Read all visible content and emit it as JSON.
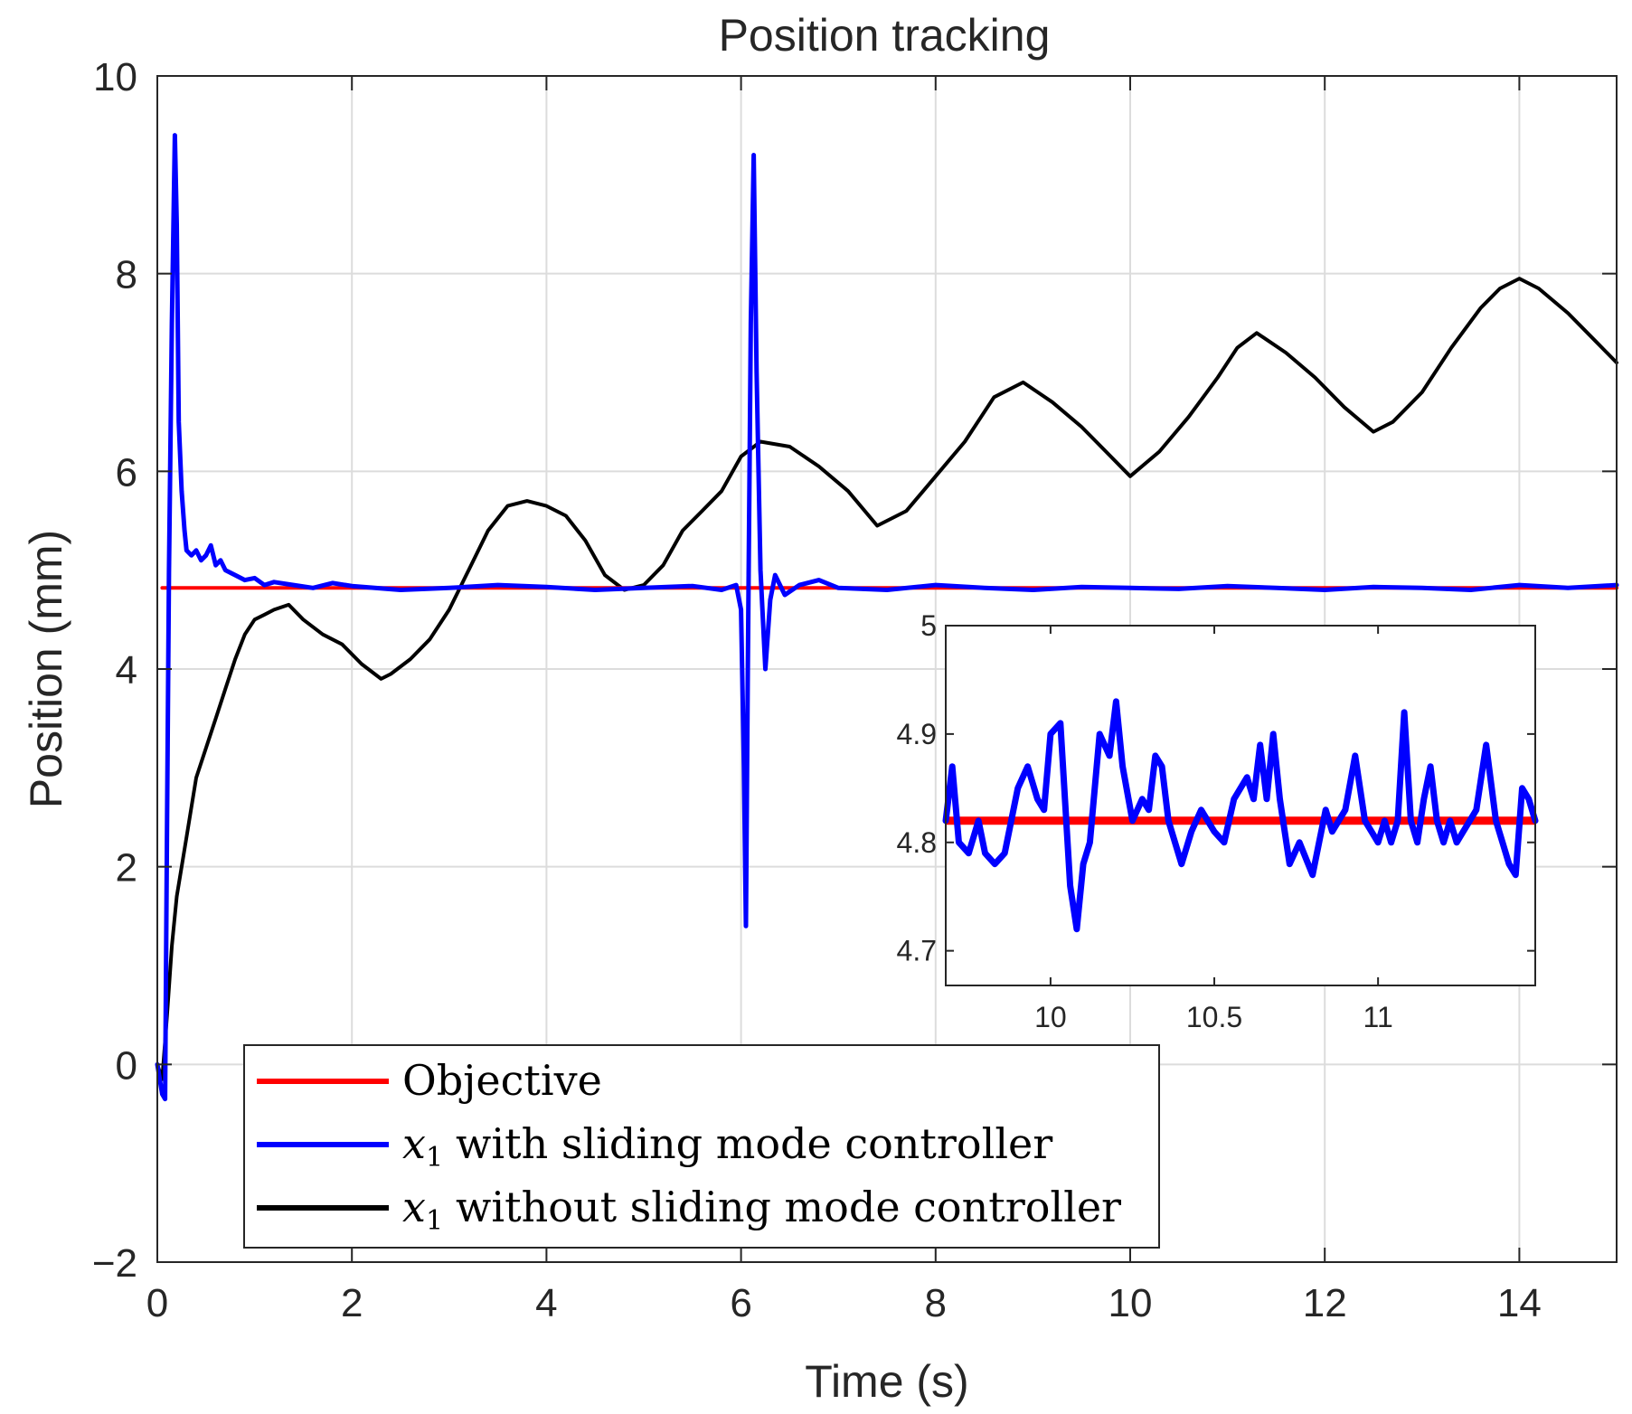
{
  "chart_data": {
    "type": "line",
    "title": "Position tracking",
    "xlabel": "Time (s)",
    "ylabel": "Position (mm)",
    "xlim": [
      0,
      15
    ],
    "ylim": [
      -2,
      10
    ],
    "grid": true,
    "xticks": [
      0,
      2,
      4,
      6,
      8,
      10,
      12,
      14
    ],
    "yticks": [
      -2,
      0,
      2,
      4,
      6,
      8,
      10
    ],
    "ytick_labels": [
      "−2",
      "0",
      "2",
      "4",
      "6",
      "8",
      "10"
    ],
    "legend_placement": "bottom-left",
    "series": [
      {
        "name": "Objective",
        "legend_label": "Objective",
        "color": "#ff0000",
        "x": [
          0.05,
          15
        ],
        "y": [
          4.82,
          4.82
        ]
      },
      {
        "name": "x1 with sliding mode controller",
        "legend_math": "x",
        "legend_sub": "1",
        "legend_text": "with sliding mode controller",
        "color": "#0000ff",
        "x": [
          0,
          0.05,
          0.08,
          0.1,
          0.12,
          0.15,
          0.18,
          0.2,
          0.22,
          0.25,
          0.28,
          0.3,
          0.35,
          0.4,
          0.45,
          0.5,
          0.55,
          0.6,
          0.65,
          0.7,
          0.8,
          0.9,
          1.0,
          1.1,
          1.2,
          1.4,
          1.6,
          1.8,
          2.0,
          2.5,
          3.0,
          3.5,
          4.0,
          4.5,
          5.0,
          5.5,
          5.8,
          5.95,
          6.0,
          6.03,
          6.05,
          6.07,
          6.1,
          6.13,
          6.16,
          6.2,
          6.25,
          6.3,
          6.35,
          6.45,
          6.6,
          6.8,
          7.0,
          7.5,
          8.0,
          8.5,
          9.0,
          9.5,
          10.0,
          10.5,
          11.0,
          11.5,
          12.0,
          12.5,
          13.0,
          13.5,
          14.0,
          14.5,
          15.0
        ],
        "y": [
          0,
          -0.3,
          -0.35,
          2.5,
          5.0,
          7.5,
          9.4,
          8.5,
          6.5,
          5.8,
          5.4,
          5.2,
          5.15,
          5.2,
          5.1,
          5.15,
          5.25,
          5.05,
          5.1,
          5.0,
          4.95,
          4.9,
          4.92,
          4.85,
          4.88,
          4.85,
          4.82,
          4.87,
          4.84,
          4.8,
          4.82,
          4.85,
          4.83,
          4.8,
          4.82,
          4.84,
          4.8,
          4.85,
          4.6,
          3.0,
          1.4,
          4.0,
          7.5,
          9.2,
          7.0,
          5.0,
          4.0,
          4.7,
          4.95,
          4.75,
          4.85,
          4.9,
          4.82,
          4.8,
          4.85,
          4.82,
          4.8,
          4.83,
          4.82,
          4.81,
          4.84,
          4.82,
          4.8,
          4.83,
          4.82,
          4.8,
          4.85,
          4.82,
          4.85
        ]
      },
      {
        "name": "x1 without sliding mode controller",
        "legend_math": "x",
        "legend_sub": "1",
        "legend_text": "without sliding mode controller",
        "color": "#000000",
        "x": [
          0,
          0.05,
          0.1,
          0.15,
          0.2,
          0.3,
          0.4,
          0.5,
          0.6,
          0.7,
          0.8,
          0.9,
          1.0,
          1.1,
          1.2,
          1.35,
          1.5,
          1.7,
          1.9,
          2.1,
          2.3,
          2.4,
          2.6,
          2.8,
          3.0,
          3.2,
          3.4,
          3.6,
          3.8,
          4.0,
          4.2,
          4.4,
          4.6,
          4.8,
          5.0,
          5.2,
          5.4,
          5.6,
          5.8,
          6.0,
          6.2,
          6.5,
          6.8,
          7.1,
          7.4,
          7.7,
          8.0,
          8.3,
          8.6,
          8.9,
          9.2,
          9.5,
          9.8,
          10.0,
          10.3,
          10.6,
          10.9,
          11.1,
          11.3,
          11.6,
          11.9,
          12.2,
          12.5,
          12.7,
          13.0,
          13.3,
          13.6,
          13.8,
          14.0,
          14.2,
          14.5,
          14.8,
          15.0
        ],
        "y": [
          0,
          -0.15,
          0.5,
          1.2,
          1.7,
          2.3,
          2.9,
          3.2,
          3.5,
          3.8,
          4.1,
          4.35,
          4.5,
          4.55,
          4.6,
          4.65,
          4.5,
          4.35,
          4.25,
          4.05,
          3.9,
          3.95,
          4.1,
          4.3,
          4.6,
          5.0,
          5.4,
          5.65,
          5.7,
          5.65,
          5.55,
          5.3,
          4.95,
          4.8,
          4.85,
          5.05,
          5.4,
          5.6,
          5.8,
          6.15,
          6.3,
          6.25,
          6.05,
          5.8,
          5.45,
          5.6,
          5.95,
          6.3,
          6.75,
          6.9,
          6.7,
          6.45,
          6.15,
          5.95,
          6.2,
          6.55,
          6.95,
          7.25,
          7.4,
          7.2,
          6.95,
          6.65,
          6.4,
          6.5,
          6.8,
          7.25,
          7.65,
          7.85,
          7.95,
          7.85,
          7.6,
          7.3,
          7.1
        ]
      }
    ],
    "inset": {
      "xlim": [
        9.68,
        11.48
      ],
      "ylim": [
        4.668,
        5.0
      ],
      "xticks": [
        10,
        10.5,
        11
      ],
      "yticks": [
        4.7,
        4.8,
        4.9,
        5
      ],
      "tick_labels_x": [
        "10",
        "10.5",
        "11"
      ],
      "tick_labels_y": [
        "4.7",
        "4.8",
        "4.9",
        "5"
      ],
      "objective_y": 4.82,
      "x": [
        9.68,
        9.7,
        9.72,
        9.75,
        9.78,
        9.8,
        9.83,
        9.86,
        9.9,
        9.93,
        9.96,
        9.98,
        10.0,
        10.03,
        10.06,
        10.08,
        10.1,
        10.12,
        10.15,
        10.18,
        10.2,
        10.22,
        10.25,
        10.28,
        10.3,
        10.32,
        10.34,
        10.36,
        10.4,
        10.43,
        10.46,
        10.5,
        10.53,
        10.56,
        10.6,
        10.62,
        10.64,
        10.66,
        10.68,
        10.7,
        10.73,
        10.76,
        10.8,
        10.82,
        10.84,
        10.86,
        10.9,
        10.93,
        10.96,
        10.98,
        11.0,
        11.02,
        11.04,
        11.06,
        11.08,
        11.1,
        11.12,
        11.14,
        11.16,
        11.18,
        11.2,
        11.22,
        11.24,
        11.26,
        11.28,
        11.3,
        11.33,
        11.36,
        11.38,
        11.4,
        11.42,
        11.44,
        11.46,
        11.48
      ],
      "y": [
        4.82,
        4.87,
        4.8,
        4.79,
        4.82,
        4.79,
        4.78,
        4.79,
        4.85,
        4.87,
        4.84,
        4.83,
        4.9,
        4.91,
        4.76,
        4.72,
        4.78,
        4.8,
        4.9,
        4.88,
        4.93,
        4.87,
        4.82,
        4.84,
        4.83,
        4.88,
        4.87,
        4.82,
        4.78,
        4.81,
        4.83,
        4.81,
        4.8,
        4.84,
        4.86,
        4.84,
        4.89,
        4.84,
        4.9,
        4.84,
        4.78,
        4.8,
        4.77,
        4.8,
        4.83,
        4.81,
        4.83,
        4.88,
        4.82,
        4.81,
        4.8,
        4.82,
        4.8,
        4.82,
        4.92,
        4.82,
        4.8,
        4.84,
        4.87,
        4.82,
        4.8,
        4.82,
        4.8,
        4.81,
        4.82,
        4.83,
        4.89,
        4.82,
        4.8,
        4.78,
        4.77,
        4.85,
        4.84,
        4.82
      ]
    }
  }
}
